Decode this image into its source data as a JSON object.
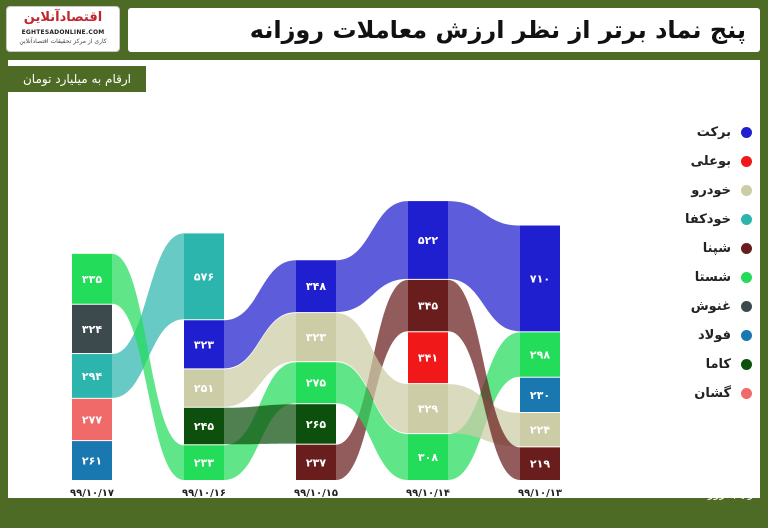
{
  "header": {
    "title": "پنج نماد برتر از نظر ارزش معاملات روزانه",
    "logo_name": "اقتصادآنلاین",
    "logo_url": "EGHTESADONLINE.COM",
    "logo_tagline": "کاری از مرکز تحقیقات اقتصادآنلاین"
  },
  "subtitle": "ارقام به میلیارد تومان",
  "footer": {
    "order_label": "ترتیب روزها",
    "arrow": "◄"
  },
  "colors": {
    "background": "#4e6b26",
    "برکت": "#1f1fcf",
    "بوعلی": "#f01818",
    "خودرو": "#cccca6",
    "خودکفا": "#2cb5ad",
    "شپنا": "#6a1d1d",
    "شستا": "#22dc5a",
    "غنوش": "#3d4a4d",
    "فولاد": "#1978b0",
    "کاما": "#0d4f0d",
    "گشان": "#f06a6a"
  },
  "chart_data": {
    "type": "bar",
    "subtype": "stacked-ribbon",
    "title": "پنج نماد برتر از نظر ارزش معاملات روزانه",
    "ylabel": "ارقام به میلیارد تومان",
    "xlabel": "ترتیب روزها",
    "categories": [
      "۹۹/۱۰/۱۷",
      "۹۹/۱۰/۱۶",
      "۹۹/۱۰/۱۵",
      "۹۹/۱۰/۱۴",
      "۹۹/۱۰/۱۳"
    ],
    "legend": [
      "برکت",
      "بوعلی",
      "خودرو",
      "خودکفا",
      "شپنا",
      "شستا",
      "غنوش",
      "فولاد",
      "کاما",
      "گشان"
    ],
    "legend_position": "right",
    "grid": false,
    "days": [
      {
        "date": "۹۹/۱۰/۱۷",
        "stack": [
          {
            "symbol": "شستا",
            "value": 335,
            "label": "۳۳۵"
          },
          {
            "symbol": "غنوش",
            "value": 324,
            "label": "۳۲۴"
          },
          {
            "symbol": "خودکفا",
            "value": 294,
            "label": "۲۹۴"
          },
          {
            "symbol": "گشان",
            "value": 277,
            "label": "۲۷۷"
          },
          {
            "symbol": "فولاد",
            "value": 261,
            "label": "۲۶۱"
          }
        ]
      },
      {
        "date": "۹۹/۱۰/۱۶",
        "stack": [
          {
            "symbol": "خودکفا",
            "value": 576,
            "label": "۵۷۶"
          },
          {
            "symbol": "برکت",
            "value": 323,
            "label": "۳۲۳"
          },
          {
            "symbol": "خودرو",
            "value": 251,
            "label": "۲۵۱"
          },
          {
            "symbol": "کاما",
            "value": 245,
            "label": "۲۴۵"
          },
          {
            "symbol": "شستا",
            "value": 233,
            "label": "۲۳۳"
          }
        ]
      },
      {
        "date": "۹۹/۱۰/۱۵",
        "stack": [
          {
            "symbol": "برکت",
            "value": 348,
            "label": "۳۴۸"
          },
          {
            "symbol": "خودرو",
            "value": 323,
            "label": "۳۲۳"
          },
          {
            "symbol": "شستا",
            "value": 275,
            "label": "۲۷۵"
          },
          {
            "symbol": "کاما",
            "value": 265,
            "label": "۲۶۵"
          },
          {
            "symbol": "شپنا",
            "value": 237,
            "label": "۲۳۷"
          }
        ]
      },
      {
        "date": "۹۹/۱۰/۱۴",
        "stack": [
          {
            "symbol": "برکت",
            "value": 522,
            "label": "۵۲۲"
          },
          {
            "symbol": "شپنا",
            "value": 345,
            "label": "۳۴۵"
          },
          {
            "symbol": "بوعلی",
            "value": 341,
            "label": "۳۴۱"
          },
          {
            "symbol": "خودرو",
            "value": 329,
            "label": "۳۲۹"
          },
          {
            "symbol": "شستا",
            "value": 308,
            "label": "۳۰۸"
          }
        ]
      },
      {
        "date": "۹۹/۱۰/۱۳",
        "stack": [
          {
            "symbol": "برکت",
            "value": 710,
            "label": "۷۱۰"
          },
          {
            "symbol": "شستا",
            "value": 298,
            "label": "۲۹۸"
          },
          {
            "symbol": "فولاد",
            "value": 230,
            "label": "۲۳۰"
          },
          {
            "symbol": "خودرو",
            "value": 224,
            "label": "۲۲۴"
          },
          {
            "symbol": "شپنا",
            "value": 219,
            "label": "۲۱۹"
          }
        ]
      }
    ]
  }
}
